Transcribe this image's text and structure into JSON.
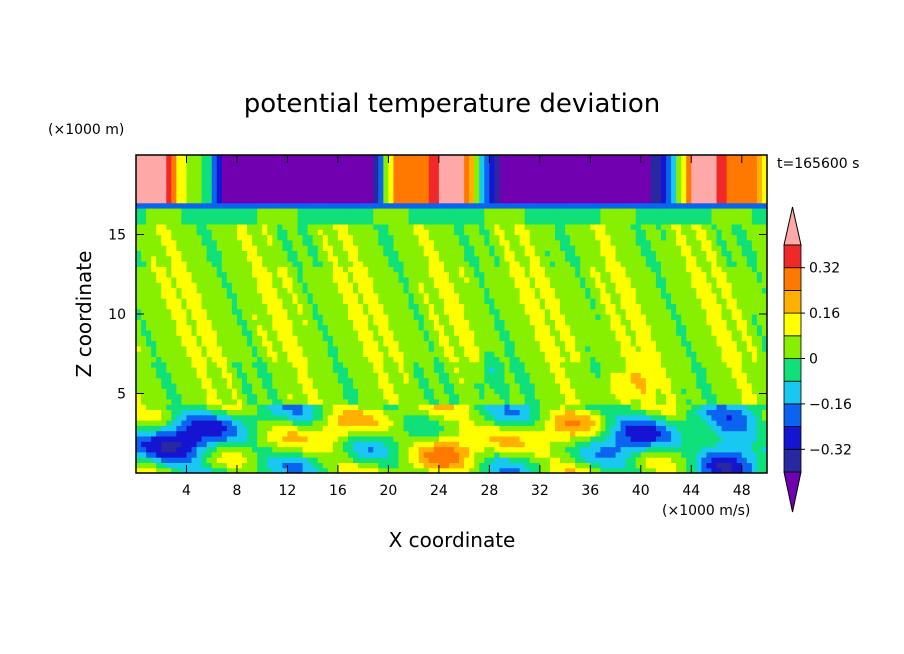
{
  "chart_data": {
    "type": "heatmap",
    "title": "potential temperature deviation",
    "xlabel": "X coordinate",
    "ylabel": "Z coordinate",
    "x_unit": "(×1000 m/s)",
    "y_unit": "(×1000 m)",
    "time_label": "t=165600 s",
    "xlim": [
      0,
      50
    ],
    "ylim": [
      0,
      20
    ],
    "x_ticks": [
      "4",
      "8",
      "12",
      "16",
      "20",
      "24",
      "28",
      "32",
      "36",
      "40",
      "44",
      "48"
    ],
    "y_ticks": [
      "5",
      "10",
      "15"
    ],
    "colorbar": {
      "levels": [
        -0.4,
        -0.32,
        -0.24,
        -0.16,
        -0.08,
        0,
        0.08,
        0.16,
        0.24,
        0.32,
        0.4
      ],
      "tick_labels": [
        "0.32",
        "0.16",
        "0",
        "−0.16",
        "−0.32"
      ],
      "tick_values": [
        0.32,
        0.16,
        0,
        -0.16,
        -0.32
      ],
      "colors": [
        "#7000b0",
        "#2828a0",
        "#1414d2",
        "#0a64f0",
        "#18c8f0",
        "#10e07a",
        "#86f000",
        "#ffff00",
        "#ffb000",
        "#ff7800",
        "#f02828",
        "#ffa8a8"
      ]
    }
  }
}
